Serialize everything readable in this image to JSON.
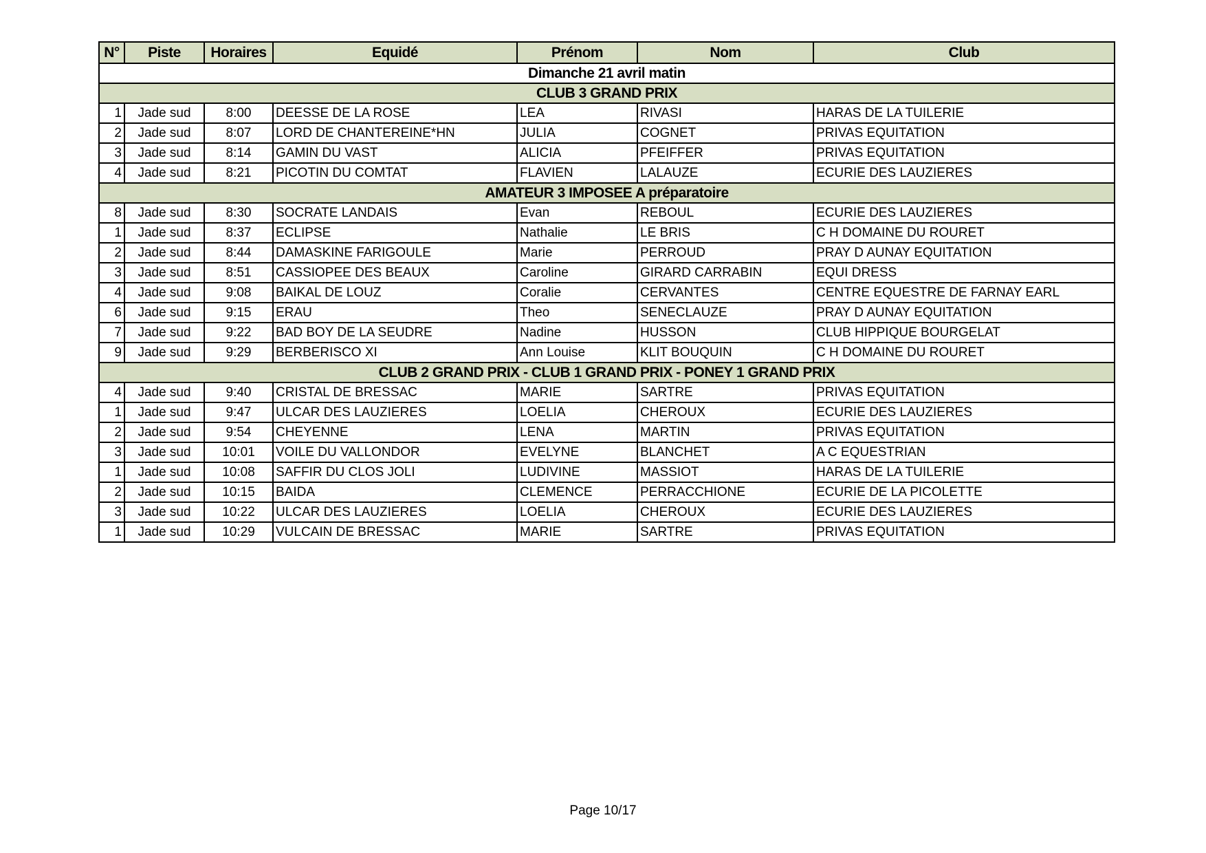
{
  "table": {
    "columns": [
      "N°",
      "Piste",
      "Horaires",
      "Equidé",
      "Prénom",
      "Nom",
      "Club"
    ],
    "day": "Dimanche 21 avril matin",
    "sections": [
      {
        "title": "CLUB 3 GRAND PRIX",
        "rows": [
          [
            "1",
            "Jade sud",
            "8:00",
            "DEESSE DE LA ROSE",
            "LEA",
            "RIVASI",
            "HARAS DE LA TUILERIE"
          ],
          [
            "2",
            "Jade sud",
            "8:07",
            "LORD DE CHANTEREINE*HN",
            "JULIA",
            "COGNET",
            "PRIVAS EQUITATION"
          ],
          [
            "3",
            "Jade sud",
            "8:14",
            "GAMIN DU VAST",
            "ALICIA",
            "PFEIFFER",
            "PRIVAS EQUITATION"
          ],
          [
            "4",
            "Jade sud",
            "8:21",
            "PICOTIN DU COMTAT",
            "FLAVIEN",
            "LALAUZE",
            "ECURIE DES LAUZIERES"
          ]
        ]
      },
      {
        "title": "AMATEUR 3 IMPOSEE A préparatoire",
        "rows": [
          [
            "8",
            "Jade sud",
            "8:30",
            "SOCRATE LANDAIS",
            "Evan",
            "REBOUL",
            "ECURIE DES LAUZIERES"
          ],
          [
            "1",
            "Jade sud",
            "8:37",
            "ECLIPSE",
            "Nathalie",
            "LE BRIS",
            "C H DOMAINE DU ROURET"
          ],
          [
            "2",
            "Jade sud",
            "8:44",
            "DAMASKINE FARIGOULE",
            "Marie",
            "PERROUD",
            "PRAY D AUNAY EQUITATION"
          ],
          [
            "3",
            "Jade sud",
            "8:51",
            "CASSIOPEE DES BEAUX",
            "Caroline",
            "GIRARD CARRABIN",
            "EQUI DRESS"
          ],
          [
            "4",
            "Jade sud",
            "9:08",
            "BAIKAL DE LOUZ",
            "Coralie",
            "CERVANTES",
            "CENTRE EQUESTRE DE FARNAY EARL"
          ],
          [
            "6",
            "Jade sud",
            "9:15",
            "ERAU",
            "Theo",
            "SENECLAUZE",
            "PRAY D AUNAY EQUITATION"
          ],
          [
            "7",
            "Jade sud",
            "9:22",
            "BAD BOY DE LA SEUDRE",
            "Nadine",
            "HUSSON",
            "CLUB HIPPIQUE BOURGELAT"
          ],
          [
            "9",
            "Jade sud",
            "9:29",
            "BERBERISCO XI",
            "Ann Louise",
            "KLIT BOUQUIN",
            "C H DOMAINE DU ROURET"
          ]
        ]
      },
      {
        "title": "CLUB 2 GRAND PRIX - CLUB 1 GRAND PRIX - PONEY 1 GRAND PRIX",
        "rows": [
          [
            "4",
            "Jade sud",
            "9:40",
            "CRISTAL DE BRESSAC",
            "MARIE",
            "SARTRE",
            "PRIVAS EQUITATION"
          ],
          [
            "1",
            "Jade sud",
            "9:47",
            "ULCAR DES LAUZIERES",
            "LOELIA",
            "CHEROUX",
            "ECURIE DES LAUZIERES"
          ],
          [
            "2",
            "Jade sud",
            "9:54",
            "CHEYENNE",
            "LENA",
            "MARTIN",
            "PRIVAS EQUITATION"
          ],
          [
            "3",
            "Jade sud",
            "10:01",
            "VOILE DU VALLONDOR",
            "EVELYNE",
            "BLANCHET",
            "A C EQUESTRIAN"
          ],
          [
            "1",
            "Jade sud",
            "10:08",
            "SAFFIR DU CLOS JOLI",
            "LUDIVINE",
            "MASSIOT",
            "HARAS DE LA TUILERIE"
          ],
          [
            "2",
            "Jade sud",
            "10:15",
            "BAIDA",
            "CLEMENCE",
            "PERRACCHIONE",
            "ECURIE DE LA PICOLETTE"
          ],
          [
            "3",
            "Jade sud",
            "10:22",
            "ULCAR DES LAUZIERES",
            "LOELIA",
            "CHEROUX",
            "ECURIE DES LAUZIERES"
          ],
          [
            "1",
            "Jade sud",
            "10:29",
            "VULCAIN DE BRESSAC",
            "MARIE",
            "SARTRE",
            "PRIVAS EQUITATION"
          ]
        ]
      }
    ]
  },
  "footer": "Page 10/17"
}
